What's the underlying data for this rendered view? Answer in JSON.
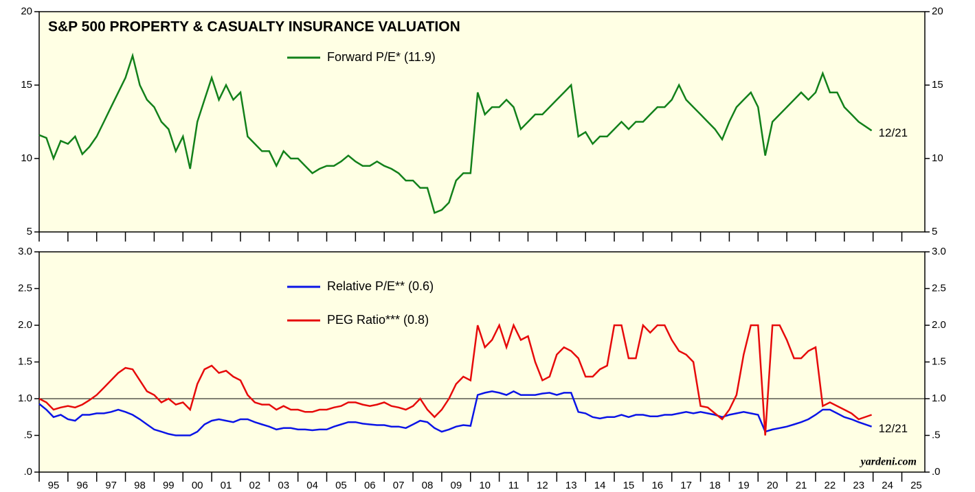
{
  "chart_data": [
    {
      "type": "line",
      "title": "S&P 500 PROPERTY & CASUALTY INSURANCE VALUATION",
      "end_label": "12/21",
      "x": [
        1995,
        1995.25,
        1995.5,
        1995.75,
        1996,
        1996.25,
        1996.5,
        1996.75,
        1997,
        1997.25,
        1997.5,
        1997.75,
        1998,
        1998.25,
        1998.5,
        1998.75,
        1999,
        1999.25,
        1999.5,
        1999.75,
        2000,
        2000.25,
        2000.5,
        2000.75,
        2001,
        2001.25,
        2001.5,
        2001.75,
        2002,
        2002.25,
        2002.5,
        2002.75,
        2003,
        2003.25,
        2003.5,
        2003.75,
        2004,
        2004.25,
        2004.5,
        2004.75,
        2005,
        2005.25,
        2005.5,
        2005.75,
        2006,
        2006.25,
        2006.5,
        2006.75,
        2007,
        2007.25,
        2007.5,
        2007.75,
        2008,
        2008.25,
        2008.5,
        2008.75,
        2009,
        2009.25,
        2009.5,
        2009.75,
        2010,
        2010.25,
        2010.5,
        2010.75,
        2011,
        2011.25,
        2011.5,
        2011.75,
        2012,
        2012.25,
        2012.5,
        2012.75,
        2013,
        2013.25,
        2013.5,
        2013.75,
        2014,
        2014.25,
        2014.5,
        2014.75,
        2015,
        2015.25,
        2015.5,
        2015.75,
        2016,
        2016.25,
        2016.5,
        2016.75,
        2017,
        2017.25,
        2017.5,
        2017.75,
        2018,
        2018.25,
        2018.5,
        2018.75,
        2019,
        2019.25,
        2019.5,
        2019.75,
        2020,
        2020.25,
        2020.5,
        2020.75,
        2021,
        2021.25,
        2021.5,
        2021.75,
        2022,
        2022.25,
        2022.5,
        2022.75,
        2023,
        2023.25,
        2023.5,
        2023.95
      ],
      "series": [
        {
          "name": "Forward P/E* (11.9)",
          "color": "#12801a",
          "values": [
            11.6,
            11.4,
            10.0,
            11.2,
            11.0,
            11.5,
            10.3,
            10.8,
            11.5,
            12.5,
            13.5,
            14.5,
            15.5,
            17.0,
            15.0,
            14.0,
            13.5,
            12.5,
            12.0,
            10.5,
            11.5,
            9.3,
            12.5,
            14.0,
            15.5,
            14.0,
            15.0,
            14.0,
            14.5,
            11.5,
            11.0,
            10.5,
            10.5,
            9.5,
            10.5,
            10.0,
            10.0,
            9.5,
            9.0,
            9.3,
            9.5,
            9.5,
            9.8,
            10.2,
            9.8,
            9.5,
            9.5,
            9.8,
            9.5,
            9.3,
            9.0,
            8.5,
            8.5,
            8.0,
            8.0,
            6.3,
            6.5,
            7.0,
            8.5,
            9.0,
            9.0,
            14.5,
            13.0,
            13.5,
            13.5,
            14.0,
            13.5,
            12.0,
            12.5,
            13.0,
            13.0,
            13.5,
            14.0,
            14.5,
            15.0,
            11.5,
            11.8,
            11.0,
            11.5,
            11.5,
            12.0,
            12.5,
            12.0,
            12.5,
            12.5,
            13.0,
            13.5,
            13.5,
            14.0,
            15.0,
            14.0,
            13.5,
            13.0,
            12.5,
            12.0,
            11.3,
            12.5,
            13.5,
            14.0,
            14.5,
            13.5,
            10.2,
            12.5,
            13.0,
            13.5,
            14.0,
            14.5,
            14.0,
            14.5,
            15.8,
            14.5,
            14.5,
            13.5,
            13.0,
            12.5,
            11.9
          ]
        }
      ],
      "xlim": [
        1995,
        2025.8
      ],
      "xticks": [
        1995,
        1996,
        1997,
        1998,
        1999,
        2000,
        2001,
        2002,
        2003,
        2004,
        2005,
        2006,
        2007,
        2008,
        2009,
        2010,
        2011,
        2012,
        2013,
        2014,
        2015,
        2016,
        2017,
        2018,
        2019,
        2020,
        2021,
        2022,
        2023,
        2024,
        2025
      ],
      "ylim": [
        5,
        20
      ],
      "yticks": [
        5,
        10,
        15,
        20
      ]
    },
    {
      "type": "line",
      "end_label": "12/21",
      "source": "yardeni.com",
      "hline": 1,
      "x": [
        1995,
        1995.25,
        1995.5,
        1995.75,
        1996,
        1996.25,
        1996.5,
        1996.75,
        1997,
        1997.25,
        1997.5,
        1997.75,
        1998,
        1998.25,
        1998.5,
        1998.75,
        1999,
        1999.25,
        1999.5,
        1999.75,
        2000,
        2000.25,
        2000.5,
        2000.75,
        2001,
        2001.25,
        2001.5,
        2001.75,
        2002,
        2002.25,
        2002.5,
        2002.75,
        2003,
        2003.25,
        2003.5,
        2003.75,
        2004,
        2004.25,
        2004.5,
        2004.75,
        2005,
        2005.25,
        2005.5,
        2005.75,
        2006,
        2006.25,
        2006.5,
        2006.75,
        2007,
        2007.25,
        2007.5,
        2007.75,
        2008,
        2008.25,
        2008.5,
        2008.75,
        2009,
        2009.25,
        2009.5,
        2009.75,
        2010,
        2010.25,
        2010.5,
        2010.75,
        2011,
        2011.25,
        2011.5,
        2011.75,
        2012,
        2012.25,
        2012.5,
        2012.75,
        2013,
        2013.25,
        2013.5,
        2013.75,
        2014,
        2014.25,
        2014.5,
        2014.75,
        2015,
        2015.25,
        2015.5,
        2015.75,
        2016,
        2016.25,
        2016.5,
        2016.75,
        2017,
        2017.25,
        2017.5,
        2017.75,
        2018,
        2018.25,
        2018.5,
        2018.75,
        2019,
        2019.25,
        2019.5,
        2019.75,
        2020,
        2020.25,
        2020.5,
        2020.75,
        2021,
        2021.25,
        2021.5,
        2021.75,
        2022,
        2022.25,
        2022.5,
        2022.75,
        2023,
        2023.25,
        2023.5,
        2023.95
      ],
      "series": [
        {
          "name": "Relative P/E** (0.6)",
          "color": "#0a14e6",
          "values": [
            0.93,
            0.85,
            0.75,
            0.78,
            0.72,
            0.7,
            0.78,
            0.78,
            0.8,
            0.8,
            0.82,
            0.85,
            0.82,
            0.78,
            0.72,
            0.65,
            0.58,
            0.55,
            0.52,
            0.5,
            0.5,
            0.5,
            0.55,
            0.65,
            0.7,
            0.72,
            0.7,
            0.68,
            0.72,
            0.72,
            0.68,
            0.65,
            0.62,
            0.58,
            0.6,
            0.6,
            0.58,
            0.58,
            0.57,
            0.58,
            0.58,
            0.62,
            0.65,
            0.68,
            0.68,
            0.66,
            0.65,
            0.64,
            0.64,
            0.62,
            0.62,
            0.6,
            0.65,
            0.7,
            0.68,
            0.6,
            0.55,
            0.58,
            0.62,
            0.64,
            0.63,
            1.05,
            1.08,
            1.1,
            1.08,
            1.05,
            1.1,
            1.05,
            1.05,
            1.05,
            1.07,
            1.08,
            1.05,
            1.08,
            1.08,
            0.82,
            0.8,
            0.75,
            0.73,
            0.75,
            0.75,
            0.78,
            0.75,
            0.78,
            0.78,
            0.76,
            0.76,
            0.78,
            0.78,
            0.8,
            0.82,
            0.8,
            0.82,
            0.8,
            0.78,
            0.75,
            0.78,
            0.8,
            0.82,
            0.8,
            0.78,
            0.55,
            0.58,
            0.6,
            0.62,
            0.65,
            0.68,
            0.72,
            0.78,
            0.85,
            0.85,
            0.8,
            0.75,
            0.72,
            0.68,
            0.62
          ]
        },
        {
          "name": "PEG Ratio*** (0.8)",
          "color": "#e60a0a",
          "values": [
            1.0,
            0.95,
            0.85,
            0.88,
            0.9,
            0.88,
            0.92,
            0.98,
            1.05,
            1.15,
            1.25,
            1.35,
            1.42,
            1.4,
            1.25,
            1.1,
            1.05,
            0.95,
            1.0,
            0.92,
            0.95,
            0.85,
            1.2,
            1.4,
            1.45,
            1.35,
            1.38,
            1.3,
            1.25,
            1.05,
            0.95,
            0.92,
            0.92,
            0.85,
            0.9,
            0.85,
            0.85,
            0.82,
            0.82,
            0.85,
            0.85,
            0.88,
            0.9,
            0.95,
            0.95,
            0.92,
            0.9,
            0.92,
            0.95,
            0.9,
            0.88,
            0.85,
            0.9,
            1.0,
            0.85,
            0.75,
            0.85,
            1.0,
            1.2,
            1.3,
            1.25,
            2.0,
            1.7,
            1.8,
            2.0,
            1.7,
            2.0,
            1.8,
            1.85,
            1.5,
            1.25,
            1.3,
            1.6,
            1.7,
            1.65,
            1.55,
            1.3,
            1.3,
            1.4,
            1.45,
            2.0,
            2.0,
            1.55,
            1.55,
            2.0,
            1.9,
            2.0,
            2.0,
            1.8,
            1.65,
            1.6,
            1.5,
            0.9,
            0.88,
            0.8,
            0.72,
            0.85,
            1.05,
            1.6,
            2.0,
            2.0,
            0.5,
            2.0,
            2.0,
            1.8,
            1.55,
            1.55,
            1.65,
            1.7,
            0.9,
            0.95,
            0.9,
            0.85,
            0.8,
            0.72,
            0.78
          ]
        }
      ],
      "xlim": [
        1995,
        2025.8
      ],
      "xticks": [
        {
          "value": 1995,
          "label": "95"
        },
        {
          "value": 1996,
          "label": "96"
        },
        {
          "value": 1997,
          "label": "97"
        },
        {
          "value": 1998,
          "label": "98"
        },
        {
          "value": 1999,
          "label": "99"
        },
        {
          "value": 2000,
          "label": "00"
        },
        {
          "value": 2001,
          "label": "01"
        },
        {
          "value": 2002,
          "label": "02"
        },
        {
          "value": 2003,
          "label": "03"
        },
        {
          "value": 2004,
          "label": "04"
        },
        {
          "value": 2005,
          "label": "05"
        },
        {
          "value": 2006,
          "label": "06"
        },
        {
          "value": 2007,
          "label": "07"
        },
        {
          "value": 2008,
          "label": "08"
        },
        {
          "value": 2009,
          "label": "09"
        },
        {
          "value": 2010,
          "label": "10"
        },
        {
          "value": 2011,
          "label": "11"
        },
        {
          "value": 2012,
          "label": "12"
        },
        {
          "value": 2013,
          "label": "13"
        },
        {
          "value": 2014,
          "label": "14"
        },
        {
          "value": 2015,
          "label": "15"
        },
        {
          "value": 2016,
          "label": "16"
        },
        {
          "value": 2017,
          "label": "17"
        },
        {
          "value": 2018,
          "label": "18"
        },
        {
          "value": 2019,
          "label": "19"
        },
        {
          "value": 2020,
          "label": "20"
        },
        {
          "value": 2021,
          "label": "21"
        },
        {
          "value": 2022,
          "label": "22"
        },
        {
          "value": 2023,
          "label": "23"
        },
        {
          "value": 2024,
          "label": "24"
        },
        {
          "value": 2025,
          "label": "25"
        }
      ],
      "ylim": [
        0,
        3
      ],
      "yticks": [
        {
          "value": 0,
          "label": ".0"
        },
        {
          "value": 0.5,
          "label": ".5"
        },
        {
          "value": 1,
          "label": "1.0"
        },
        {
          "value": 1.5,
          "label": "1.5"
        },
        {
          "value": 2,
          "label": "2.0"
        },
        {
          "value": 2.5,
          "label": "2.5"
        },
        {
          "value": 3,
          "label": "3.0"
        }
      ]
    }
  ]
}
